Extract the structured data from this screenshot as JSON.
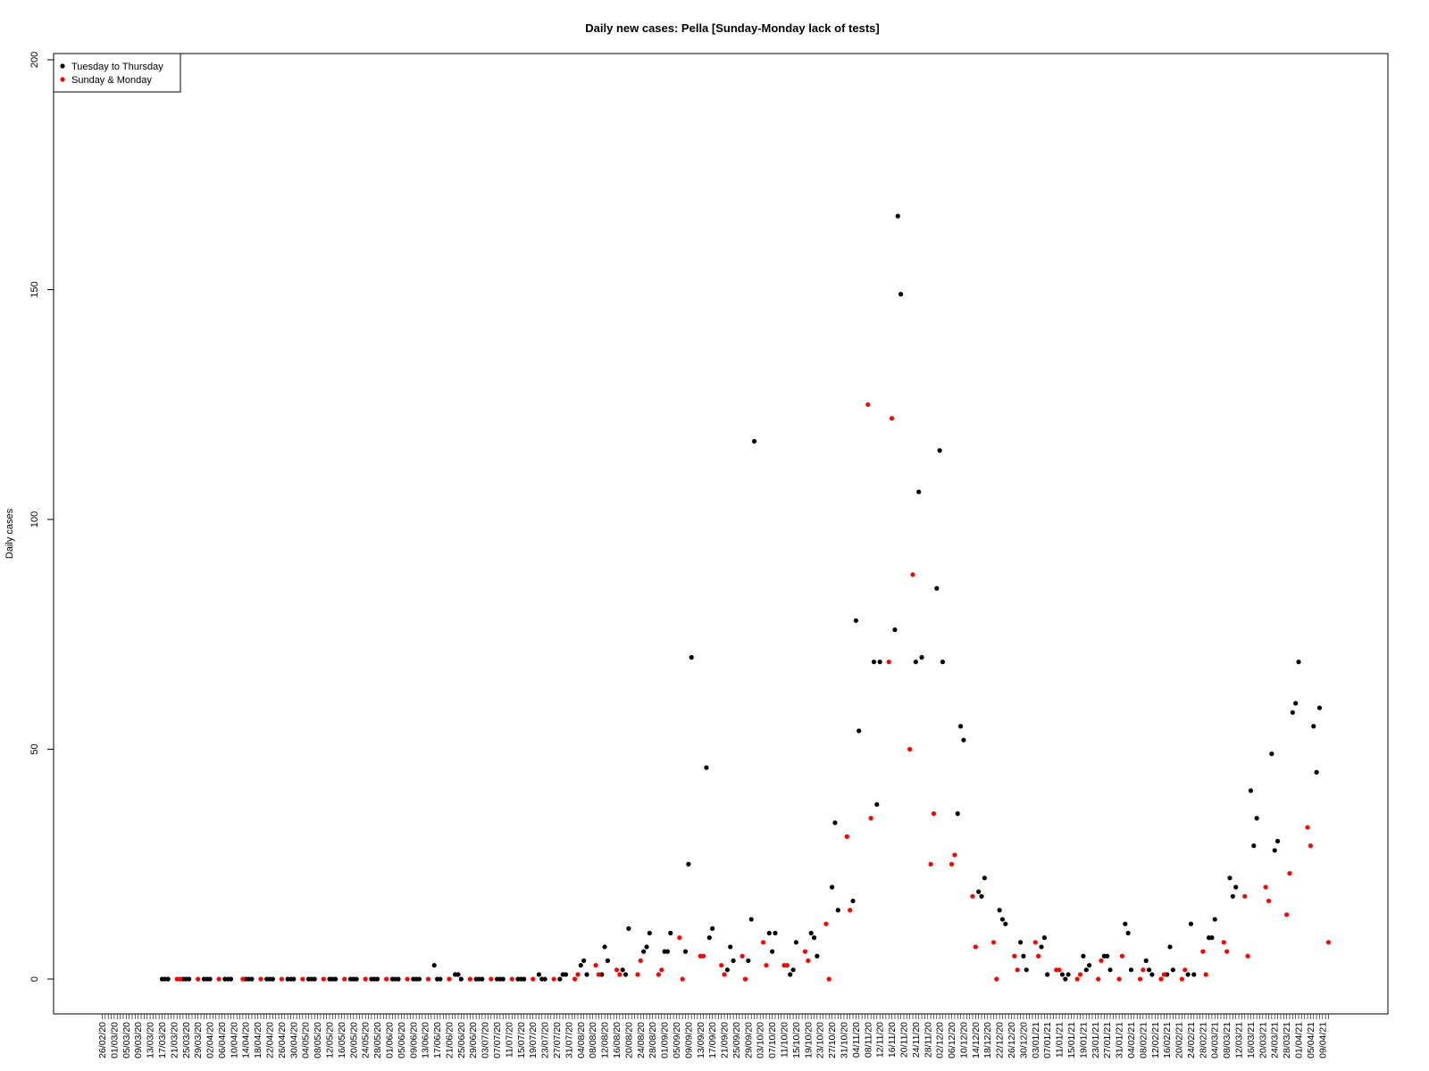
{
  "chart_data": {
    "type": "scatter",
    "title": "Daily new cases:  Pella  [Sunday-Monday lack of tests]",
    "xlabel": "",
    "ylabel": "Daily cases",
    "ylim": [
      0,
      200
    ],
    "yticks": [
      0,
      50,
      100,
      150,
      200
    ],
    "grid": false,
    "legend_position": "top-left",
    "x_start_date": "26/02/20",
    "x_end_date": "11/04/21",
    "x_tick_step_days": 4,
    "colors": {
      "tuesday_to_thursday": "#000000",
      "sunday_monday": "#ff0000"
    },
    "series": [
      {
        "name": "Tuesday to Thursday",
        "color": "#000000",
        "points": [
          [
            "17/03/20",
            0
          ],
          [
            "18/03/20",
            0
          ],
          [
            "19/03/20",
            0
          ],
          [
            "24/03/20",
            0
          ],
          [
            "25/03/20",
            0
          ],
          [
            "26/03/20",
            0
          ],
          [
            "31/03/20",
            0
          ],
          [
            "01/04/20",
            0
          ],
          [
            "02/04/20",
            0
          ],
          [
            "07/04/20",
            0
          ],
          [
            "08/04/20",
            0
          ],
          [
            "09/04/20",
            0
          ],
          [
            "14/04/20",
            0
          ],
          [
            "15/04/20",
            0
          ],
          [
            "16/04/20",
            0
          ],
          [
            "21/04/20",
            0
          ],
          [
            "22/04/20",
            0
          ],
          [
            "23/04/20",
            0
          ],
          [
            "28/04/20",
            0
          ],
          [
            "29/04/20",
            0
          ],
          [
            "30/04/20",
            0
          ],
          [
            "05/05/20",
            0
          ],
          [
            "06/05/20",
            0
          ],
          [
            "07/05/20",
            0
          ],
          [
            "12/05/20",
            0
          ],
          [
            "13/05/20",
            0
          ],
          [
            "14/05/20",
            0
          ],
          [
            "19/05/20",
            0
          ],
          [
            "20/05/20",
            0
          ],
          [
            "21/05/20",
            0
          ],
          [
            "26/05/20",
            0
          ],
          [
            "27/05/20",
            0
          ],
          [
            "28/05/20",
            0
          ],
          [
            "02/06/20",
            0
          ],
          [
            "03/06/20",
            0
          ],
          [
            "04/06/20",
            0
          ],
          [
            "09/06/20",
            0
          ],
          [
            "10/06/20",
            0
          ],
          [
            "11/06/20",
            0
          ],
          [
            "16/06/20",
            3
          ],
          [
            "17/06/20",
            0
          ],
          [
            "18/06/20",
            0
          ],
          [
            "23/06/20",
            1
          ],
          [
            "24/06/20",
            1
          ],
          [
            "25/06/20",
            0
          ],
          [
            "30/06/20",
            0
          ],
          [
            "01/07/20",
            0
          ],
          [
            "02/07/20",
            0
          ],
          [
            "07/07/20",
            0
          ],
          [
            "08/07/20",
            0
          ],
          [
            "09/07/20",
            0
          ],
          [
            "14/07/20",
            0
          ],
          [
            "15/07/20",
            0
          ],
          [
            "16/07/20",
            0
          ],
          [
            "21/07/20",
            1
          ],
          [
            "22/07/20",
            0
          ],
          [
            "23/07/20",
            0
          ],
          [
            "28/07/20",
            0
          ],
          [
            "29/07/20",
            1
          ],
          [
            "30/07/20",
            1
          ],
          [
            "04/08/20",
            3
          ],
          [
            "05/08/20",
            4
          ],
          [
            "06/08/20",
            1
          ],
          [
            "11/08/20",
            1
          ],
          [
            "12/08/20",
            7
          ],
          [
            "13/08/20",
            4
          ],
          [
            "18/08/20",
            2
          ],
          [
            "19/08/20",
            1
          ],
          [
            "20/08/20",
            11
          ],
          [
            "25/08/20",
            6
          ],
          [
            "26/08/20",
            7
          ],
          [
            "27/08/20",
            10
          ],
          [
            "01/09/20",
            6
          ],
          [
            "02/09/20",
            6
          ],
          [
            "03/09/20",
            10
          ],
          [
            "08/09/20",
            6
          ],
          [
            "09/09/20",
            25
          ],
          [
            "10/09/20",
            70
          ],
          [
            "15/09/20",
            46
          ],
          [
            "16/09/20",
            9
          ],
          [
            "17/09/20",
            11
          ],
          [
            "22/09/20",
            2
          ],
          [
            "23/09/20",
            7
          ],
          [
            "24/09/20",
            4
          ],
          [
            "29/09/20",
            4
          ],
          [
            "30/09/20",
            13
          ],
          [
            "01/10/20",
            117
          ],
          [
            "06/10/20",
            10
          ],
          [
            "07/10/20",
            6
          ],
          [
            "08/10/20",
            10
          ],
          [
            "13/10/20",
            1
          ],
          [
            "14/10/20",
            2
          ],
          [
            "15/10/20",
            8
          ],
          [
            "20/10/20",
            10
          ],
          [
            "21/10/20",
            9
          ],
          [
            "22/10/20",
            5
          ],
          [
            "27/10/20",
            20
          ],
          [
            "28/10/20",
            34
          ],
          [
            "29/10/20",
            15
          ],
          [
            "03/11/20",
            17
          ],
          [
            "04/11/20",
            78
          ],
          [
            "05/11/20",
            54
          ],
          [
            "10/11/20",
            69
          ],
          [
            "11/11/20",
            38
          ],
          [
            "12/11/20",
            69
          ],
          [
            "17/11/20",
            76
          ],
          [
            "18/11/20",
            166
          ],
          [
            "19/11/20",
            149
          ],
          [
            "24/11/20",
            69
          ],
          [
            "25/11/20",
            106
          ],
          [
            "26/11/20",
            70
          ],
          [
            "01/12/20",
            85
          ],
          [
            "02/12/20",
            115
          ],
          [
            "03/12/20",
            69
          ],
          [
            "08/12/20",
            36
          ],
          [
            "09/12/20",
            55
          ],
          [
            "10/12/20",
            52
          ],
          [
            "15/12/20",
            19
          ],
          [
            "16/12/20",
            18
          ],
          [
            "17/12/20",
            22
          ],
          [
            "22/12/20",
            15
          ],
          [
            "23/12/20",
            13
          ],
          [
            "24/12/20",
            12
          ],
          [
            "29/12/20",
            8
          ],
          [
            "30/12/20",
            5
          ],
          [
            "31/12/20",
            2
          ],
          [
            "05/01/21",
            7
          ],
          [
            "06/01/21",
            9
          ],
          [
            "07/01/21",
            1
          ],
          [
            "12/01/21",
            1
          ],
          [
            "13/01/21",
            0
          ],
          [
            "14/01/21",
            1
          ],
          [
            "19/01/21",
            5
          ],
          [
            "20/01/21",
            2
          ],
          [
            "21/01/21",
            3
          ],
          [
            "26/01/21",
            5
          ],
          [
            "27/01/21",
            5
          ],
          [
            "28/01/21",
            2
          ],
          [
            "02/02/21",
            12
          ],
          [
            "03/02/21",
            10
          ],
          [
            "04/02/21",
            2
          ],
          [
            "09/02/21",
            4
          ],
          [
            "10/02/21",
            2
          ],
          [
            "11/02/21",
            1
          ],
          [
            "16/02/21",
            1
          ],
          [
            "17/02/21",
            7
          ],
          [
            "18/02/21",
            2
          ],
          [
            "23/02/21",
            1
          ],
          [
            "24/02/21",
            12
          ],
          [
            "25/02/21",
            1
          ],
          [
            "02/03/21",
            9
          ],
          [
            "03/03/21",
            9
          ],
          [
            "04/03/21",
            13
          ],
          [
            "09/03/21",
            22
          ],
          [
            "10/03/21",
            18
          ],
          [
            "11/03/21",
            20
          ],
          [
            "16/03/21",
            41
          ],
          [
            "17/03/21",
            29
          ],
          [
            "18/03/21",
            35
          ],
          [
            "23/03/21",
            49
          ],
          [
            "24/03/21",
            28
          ],
          [
            "25/03/21",
            30
          ],
          [
            "30/03/21",
            58
          ],
          [
            "31/03/21",
            60
          ],
          [
            "01/04/21",
            69
          ],
          [
            "06/04/21",
            55
          ],
          [
            "07/04/21",
            45
          ],
          [
            "08/04/21",
            59
          ]
        ]
      },
      {
        "name": "Sunday & Monday",
        "color": "#ff0000",
        "points": [
          [
            "22/03/20",
            0
          ],
          [
            "23/03/20",
            0
          ],
          [
            "29/03/20",
            0
          ],
          [
            "05/04/20",
            0
          ],
          [
            "13/04/20",
            0
          ],
          [
            "19/04/20",
            0
          ],
          [
            "26/04/20",
            0
          ],
          [
            "03/05/20",
            0
          ],
          [
            "10/05/20",
            0
          ],
          [
            "17/05/20",
            0
          ],
          [
            "24/05/20",
            0
          ],
          [
            "31/05/20",
            0
          ],
          [
            "07/06/20",
            0
          ],
          [
            "14/06/20",
            0
          ],
          [
            "21/06/20",
            0
          ],
          [
            "28/06/20",
            0
          ],
          [
            "05/07/20",
            0
          ],
          [
            "12/07/20",
            0
          ],
          [
            "19/07/20",
            0
          ],
          [
            "26/07/20",
            0
          ],
          [
            "02/08/20",
            0
          ],
          [
            "03/08/20",
            1
          ],
          [
            "09/08/20",
            3
          ],
          [
            "10/08/20",
            1
          ],
          [
            "16/08/20",
            2
          ],
          [
            "17/08/20",
            1
          ],
          [
            "23/08/20",
            1
          ],
          [
            "24/08/20",
            4
          ],
          [
            "30/08/20",
            1
          ],
          [
            "31/08/20",
            2
          ],
          [
            "06/09/20",
            9
          ],
          [
            "07/09/20",
            0
          ],
          [
            "13/09/20",
            5
          ],
          [
            "14/09/20",
            5
          ],
          [
            "20/09/20",
            3
          ],
          [
            "21/09/20",
            1
          ],
          [
            "27/09/20",
            5
          ],
          [
            "28/09/20",
            0
          ],
          [
            "04/10/20",
            8
          ],
          [
            "05/10/20",
            3
          ],
          [
            "11/10/20",
            3
          ],
          [
            "12/10/20",
            3
          ],
          [
            "18/10/20",
            6
          ],
          [
            "19/10/20",
            4
          ],
          [
            "25/10/20",
            12
          ],
          [
            "26/10/20",
            0
          ],
          [
            "01/11/20",
            31
          ],
          [
            "02/11/20",
            15
          ],
          [
            "08/11/20",
            125
          ],
          [
            "09/11/20",
            35
          ],
          [
            "15/11/20",
            69
          ],
          [
            "16/11/20",
            122
          ],
          [
            "22/11/20",
            50
          ],
          [
            "23/11/20",
            88
          ],
          [
            "29/11/20",
            25
          ],
          [
            "30/11/20",
            36
          ],
          [
            "06/12/20",
            25
          ],
          [
            "07/12/20",
            27
          ],
          [
            "13/12/20",
            18
          ],
          [
            "14/12/20",
            7
          ],
          [
            "20/12/20",
            8
          ],
          [
            "21/12/20",
            0
          ],
          [
            "27/12/20",
            5
          ],
          [
            "28/12/20",
            2
          ],
          [
            "03/01/21",
            8
          ],
          [
            "04/01/21",
            5
          ],
          [
            "10/01/21",
            2
          ],
          [
            "11/01/21",
            2
          ],
          [
            "17/01/21",
            0
          ],
          [
            "18/01/21",
            1
          ],
          [
            "24/01/21",
            0
          ],
          [
            "25/01/21",
            4
          ],
          [
            "31/01/21",
            0
          ],
          [
            "01/02/21",
            5
          ],
          [
            "07/02/21",
            0
          ],
          [
            "08/02/21",
            2
          ],
          [
            "14/02/21",
            0
          ],
          [
            "15/02/21",
            1
          ],
          [
            "21/02/21",
            0
          ],
          [
            "22/02/21",
            2
          ],
          [
            "28/02/21",
            6
          ],
          [
            "01/03/21",
            1
          ],
          [
            "07/03/21",
            8
          ],
          [
            "08/03/21",
            6
          ],
          [
            "14/03/21",
            18
          ],
          [
            "15/03/21",
            5
          ],
          [
            "21/03/21",
            20
          ],
          [
            "22/03/21",
            17
          ],
          [
            "28/03/21",
            14
          ],
          [
            "29/03/21",
            23
          ],
          [
            "04/04/21",
            33
          ],
          [
            "05/04/21",
            29
          ],
          [
            "11/04/21",
            8
          ]
        ]
      }
    ]
  }
}
